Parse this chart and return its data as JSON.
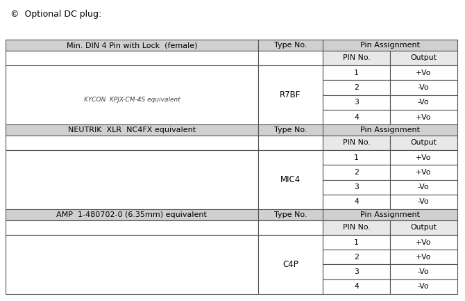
{
  "title": "©  Optional DC plug:",
  "bg_color": "#ffffff",
  "table_border_color": "#999999",
  "header_bg": "#d0d0d0",
  "subheader_bg": "#e8e8e8",
  "cell_bg": "#ffffff",
  "text_color": "#000000",
  "sections": [
    {
      "name": "Min. DIN 4 Pin with Lock  (female)",
      "type_no": "R7BF",
      "sub_label": "KYCON  KPJX-CM-4S equivalent",
      "pins": [
        {
          "pin": "1",
          "output": "+Vo"
        },
        {
          "pin": "2",
          "output": "-Vo"
        },
        {
          "pin": "3",
          "output": "-Vo"
        },
        {
          "pin": "4",
          "output": "+Vo"
        }
      ]
    },
    {
      "name": "NEUTRIK  XLR  NC4FX equivalent",
      "type_no": "MIC4",
      "sub_label": "",
      "pins": [
        {
          "pin": "1",
          "output": "+Vo"
        },
        {
          "pin": "2",
          "output": "+Vo"
        },
        {
          "pin": "3",
          "output": "-Vo"
        },
        {
          "pin": "4",
          "output": "-Vo"
        }
      ]
    },
    {
      "name": "AMP  1-480702-0 (6.35mm) equivalent",
      "type_no": "C4P",
      "sub_label": "",
      "pins": [
        {
          "pin": "1",
          "output": "+Vo"
        },
        {
          "pin": "2",
          "output": "+Vo"
        },
        {
          "pin": "3",
          "output": "-Vo"
        },
        {
          "pin": "4",
          "output": "-Vo"
        }
      ]
    }
  ],
  "col_headers": [
    "PIN No.",
    "Output"
  ],
  "pin_assign_label": "Pin Assignment",
  "type_no_label": "Type No."
}
